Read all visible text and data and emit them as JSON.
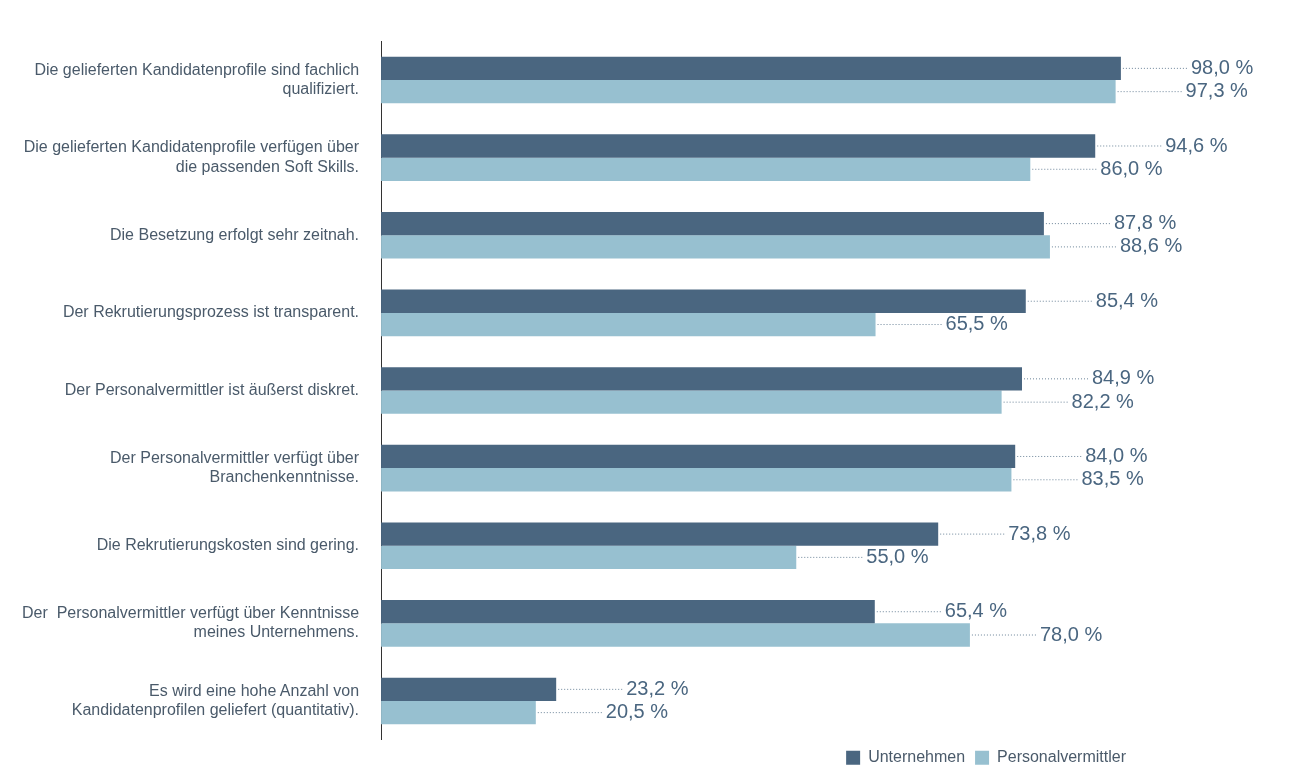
{
  "chart_data": {
    "type": "bar",
    "orientation": "horizontal",
    "categories": [
      "Die gelieferten Kandidatenprofile sind fachlich qualifiziert.",
      "Die gelieferten Kandidatenprofile verfügen über die passenden Soft Skills.",
      "Die Besetzung erfolgt sehr zeitnah.",
      "Der Rekrutierungsprozess ist transparent.",
      "Der Personalvermittler ist äußerst diskret.",
      "Der Personalvermittler verfügt über Branchenkenntnisse.",
      "Die Rekrutierungskosten sind gering.",
      "Der  Personalvermittler verfügt über Kenntnisse meines Unternehmens.",
      "Es wird eine hohe Anzahl von Kandidatenprofilen geliefert (quantitativ)."
    ],
    "series": [
      {
        "name": "Unternehmen",
        "color": "#4a6680",
        "values": [
          98.0,
          94.6,
          87.8,
          85.4,
          84.9,
          84.0,
          73.8,
          65.4,
          23.2
        ],
        "value_labels": [
          "98,0 %",
          "94,6 %",
          "87,8 %",
          "85,4 %",
          "84,9 %",
          "84,0 %",
          "73,8 %",
          "65,4 %",
          "23,2 %"
        ]
      },
      {
        "name": "Personalvermittler",
        "color": "#97c0d0",
        "values": [
          97.3,
          86.0,
          88.6,
          65.5,
          82.2,
          83.5,
          55.0,
          78.0,
          20.5
        ],
        "value_labels": [
          "97,3 %",
          "86,0 %",
          "88,6 %",
          "65,5 %",
          "82,2 %",
          "83,5 %",
          "55,0 %",
          "78,0 %",
          "20,5 %"
        ]
      }
    ],
    "legend": "bottom right"
  }
}
